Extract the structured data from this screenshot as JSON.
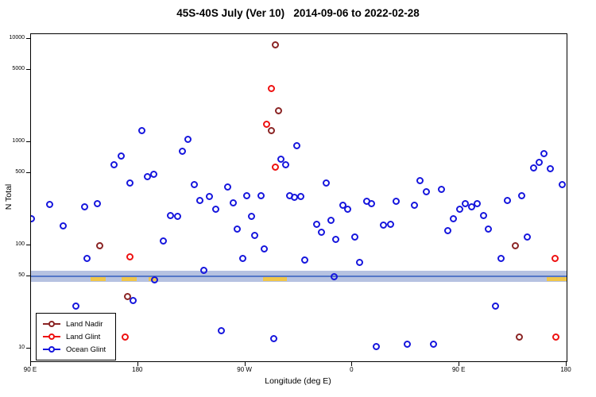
{
  "title": "45S-40S July (Ver 10)   2014-09-06 to 2022-02-28",
  "chart_data": {
    "type": "scatter",
    "title": "45S-40S July (Ver 10)   2014-09-06 to 2022-02-28",
    "xlabel": "Longitude (deg E)",
    "ylabel": "N Total",
    "x_axis": {
      "min": 0,
      "max": 450,
      "ticks": [
        0,
        90,
        180,
        270,
        360,
        450
      ],
      "tick_labels": [
        "90 E",
        "180",
        "90 W",
        "0",
        "90 E",
        "180"
      ]
    },
    "y_axis": {
      "scale": "log",
      "min": 10,
      "max": 10000,
      "ticks": [
        10,
        50,
        100,
        500,
        1000,
        5000,
        10000
      ],
      "tick_labels": [
        "10",
        "50",
        "100",
        "500",
        "1000",
        "5000",
        "10000"
      ]
    },
    "band": {
      "color": "#a9b7dc",
      "line_color": "#5577c8",
      "yellow_color": "#f0c64a",
      "y_from": 44,
      "y_to": 57,
      "line_at": 50,
      "yellow_segments": [
        [
          50,
          63
        ],
        [
          76,
          89
        ],
        [
          99,
          106
        ],
        [
          195,
          215
        ],
        [
          433,
          450
        ]
      ]
    },
    "series": [
      {
        "name": "Land Nadir",
        "color": "#8b2525",
        "points": [
          [
            58,
            100
          ],
          [
            81,
            32
          ],
          [
            202,
            1300
          ],
          [
            205,
            8800
          ],
          [
            208,
            2000
          ],
          [
            407,
            100
          ],
          [
            410,
            13
          ]
        ]
      },
      {
        "name": "Land Glint",
        "color": "#ee1111",
        "points": [
          [
            79,
            13
          ],
          [
            83,
            78
          ],
          [
            198,
            1500
          ],
          [
            202,
            3300
          ],
          [
            205,
            570
          ],
          [
            440,
            75
          ],
          [
            441,
            13
          ]
        ]
      },
      {
        "name": "Ocean Glint",
        "color": "#1616dd",
        "points": [
          [
            0,
            180
          ],
          [
            16,
            250
          ],
          [
            27,
            155
          ],
          [
            38,
            26
          ],
          [
            45,
            235
          ],
          [
            47,
            74
          ],
          [
            56,
            255
          ],
          [
            70,
            600
          ],
          [
            76,
            730
          ],
          [
            83,
            400
          ],
          [
            86,
            29
          ],
          [
            93,
            1300
          ],
          [
            98,
            460
          ],
          [
            103,
            490
          ],
          [
            104,
            46
          ],
          [
            111,
            110
          ],
          [
            117,
            195
          ],
          [
            123,
            190
          ],
          [
            127,
            810
          ],
          [
            132,
            1070
          ],
          [
            137,
            385
          ],
          [
            142,
            270
          ],
          [
            145,
            57
          ],
          [
            150,
            295
          ],
          [
            155,
            225
          ],
          [
            160,
            15
          ],
          [
            165,
            365
          ],
          [
            170,
            260
          ],
          [
            173,
            145
          ],
          [
            178,
            74
          ],
          [
            181,
            300
          ],
          [
            185,
            190
          ],
          [
            188,
            125
          ],
          [
            193,
            305
          ],
          [
            196,
            93
          ],
          [
            204,
            12.5
          ],
          [
            210,
            680
          ],
          [
            214,
            600
          ],
          [
            217,
            305
          ],
          [
            221,
            290
          ],
          [
            223,
            930
          ],
          [
            227,
            295
          ],
          [
            230,
            72
          ],
          [
            240,
            160
          ],
          [
            244,
            133
          ],
          [
            248,
            405
          ],
          [
            252,
            175
          ],
          [
            256,
            115
          ],
          [
            255,
            50
          ],
          [
            262,
            245
          ],
          [
            266,
            225
          ],
          [
            272,
            120
          ],
          [
            276,
            68
          ],
          [
            282,
            265
          ],
          [
            286,
            255
          ],
          [
            290,
            10.5
          ],
          [
            296,
            158
          ],
          [
            302,
            160
          ],
          [
            307,
            265
          ],
          [
            316,
            11
          ],
          [
            322,
            245
          ],
          [
            327,
            420
          ],
          [
            332,
            330
          ],
          [
            338,
            11
          ],
          [
            345,
            350
          ],
          [
            350,
            140
          ],
          [
            355,
            180
          ],
          [
            360,
            225
          ],
          [
            365,
            255
          ],
          [
            370,
            235
          ],
          [
            375,
            255
          ],
          [
            380,
            195
          ],
          [
            384,
            145
          ],
          [
            390,
            26
          ],
          [
            395,
            75
          ],
          [
            400,
            270
          ],
          [
            412,
            305
          ],
          [
            417,
            120
          ],
          [
            422,
            560
          ],
          [
            427,
            640
          ],
          [
            431,
            780
          ],
          [
            436,
            550
          ],
          [
            446,
            385
          ]
        ]
      }
    ]
  },
  "legend": {
    "items": [
      {
        "label": "Land Nadir",
        "color": "#8b2525"
      },
      {
        "label": "Land Glint",
        "color": "#ee1111"
      },
      {
        "label": "Ocean Glint",
        "color": "#1616dd"
      }
    ]
  }
}
